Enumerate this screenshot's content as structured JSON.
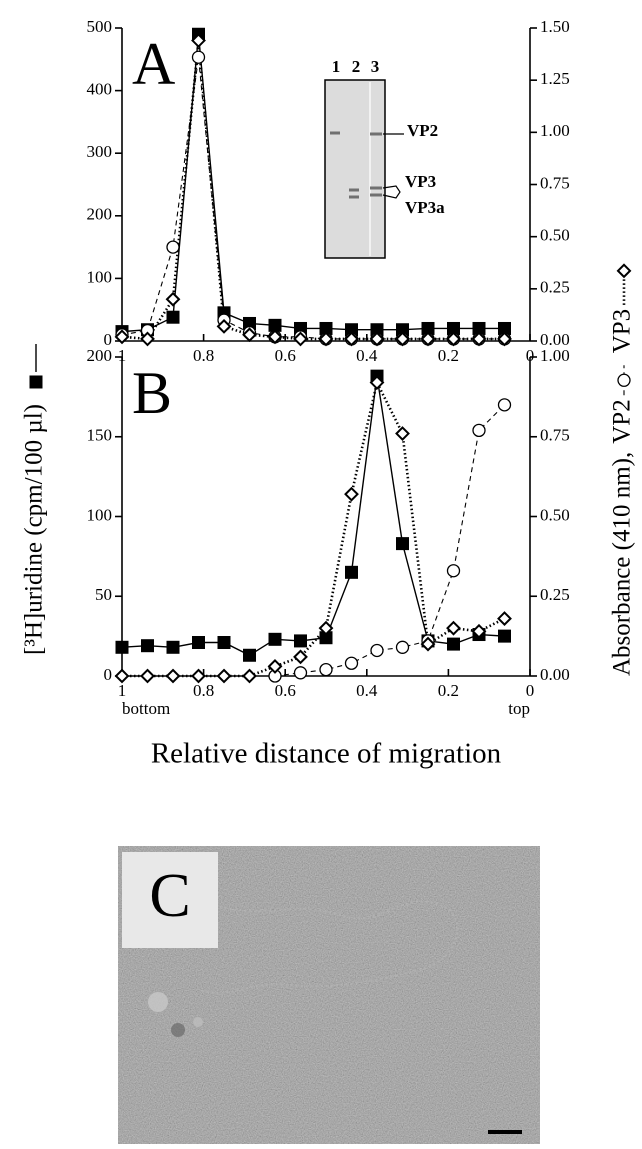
{
  "chart_data": [
    {
      "type": "line",
      "panel_label": "A",
      "ylabel": "[³H]uridine (cpm/100 µl)",
      "y2label": "Absorbance (410 nm),",
      "x": [
        1,
        0.9375,
        0.875,
        0.8125,
        0.75,
        0.6875,
        0.625,
        0.5625,
        0.5,
        0.4375,
        0.375,
        0.3125,
        0.25,
        0.1875,
        0.125,
        0.0625
      ],
      "xlim": [
        1,
        0
      ],
      "xticks": [
        1,
        0.8,
        0.6,
        0.4,
        0.2,
        0
      ],
      "ylim": [
        0,
        500
      ],
      "yticks": [
        0,
        100,
        200,
        300,
        400,
        500
      ],
      "y2lim": [
        0,
        1.5
      ],
      "y2ticks": [
        {
          "value": 0,
          "label": "0.00"
        },
        {
          "value": 0.25,
          "label": "0.25"
        },
        {
          "value": 0.5,
          "label": "0.50"
        },
        {
          "value": 0.75,
          "label": "0.75"
        },
        {
          "value": 1,
          "label": "1.00"
        },
        {
          "value": 1.25,
          "label": "1.25"
        },
        {
          "value": 1.5,
          "label": "1.50"
        }
      ],
      "series": [
        {
          "color": "#000000",
          "marker": "square",
          "linestyle": "solid",
          "values": [
            15,
            18,
            38,
            490,
            45,
            28,
            25,
            20,
            20,
            18,
            18,
            18,
            20,
            20,
            20,
            20
          ]
        },
        {
          "name": "VP2",
          "color": "#000000",
          "marker": "circle",
          "linestyle": "dashed",
          "axis": "y2",
          "values": [
            0.03,
            0.05,
            0.45,
            1.36,
            0.1,
            0.04,
            0.02,
            0.02,
            0.01,
            0.01,
            0.01,
            0.01,
            0.01,
            0.01,
            0.01,
            0.01
          ]
        },
        {
          "name": "VP3",
          "color": "#000000",
          "marker": "diamond",
          "linestyle": "dotted",
          "axis": "y2",
          "values": [
            0.02,
            0.01,
            0.2,
            1.44,
            0.07,
            0.03,
            0.02,
            0.01,
            0.01,
            0.01,
            0.01,
            0.01,
            0.01,
            0.01,
            0.01,
            0.01
          ]
        }
      ],
      "inset": {
        "lanes": [
          "1",
          "2",
          "3"
        ],
        "bands": [
          "VP2",
          "VP3",
          "VP3a"
        ]
      }
    },
    {
      "type": "line",
      "panel_label": "B",
      "xlabel": "Relative distance of migration",
      "x_end_labels": [
        "bottom",
        "top"
      ],
      "x": [
        1,
        0.9375,
        0.875,
        0.8125,
        0.75,
        0.6875,
        0.625,
        0.5625,
        0.5,
        0.4375,
        0.375,
        0.3125,
        0.25,
        0.1875,
        0.125,
        0.0625
      ],
      "xlim": [
        1,
        0
      ],
      "xticks": [
        1,
        0.8,
        0.6,
        0.4,
        0.2,
        0
      ],
      "ylim": [
        0,
        200
      ],
      "yticks": [
        0,
        50,
        100,
        150,
        200
      ],
      "y2lim": [
        0,
        1
      ],
      "y2ticks": [
        {
          "value": 0,
          "label": "0.00"
        },
        {
          "value": 0.25,
          "label": "0.25"
        },
        {
          "value": 0.5,
          "label": "0.50"
        },
        {
          "value": 0.75,
          "label": "0.75"
        },
        {
          "value": 1,
          "label": "1.00"
        }
      ],
      "series": [
        {
          "color": "#000000",
          "marker": "square",
          "linestyle": "solid",
          "values": [
            18,
            19,
            18,
            21,
            21,
            13,
            23,
            22,
            24,
            65,
            188,
            83,
            22,
            20,
            26,
            25
          ]
        },
        {
          "color": "#000000",
          "marker": "circle",
          "linestyle": "dashed",
          "axis": "y2",
          "values": [
            null,
            null,
            null,
            null,
            null,
            null,
            0.0,
            0.01,
            0.02,
            0.04,
            0.08,
            0.09,
            0.11,
            0.33,
            0.77,
            0.85
          ]
        },
        {
          "color": "#000000",
          "marker": "diamond",
          "linestyle": "dotted",
          "axis": "y2",
          "values": [
            0,
            0,
            0,
            0,
            0,
            0,
            0.03,
            0.06,
            0.15,
            0.57,
            0.92,
            0.76,
            0.1,
            0.15,
            0.14,
            0.18
          ]
        }
      ]
    }
  ],
  "photo": {
    "panel_label": "C"
  }
}
